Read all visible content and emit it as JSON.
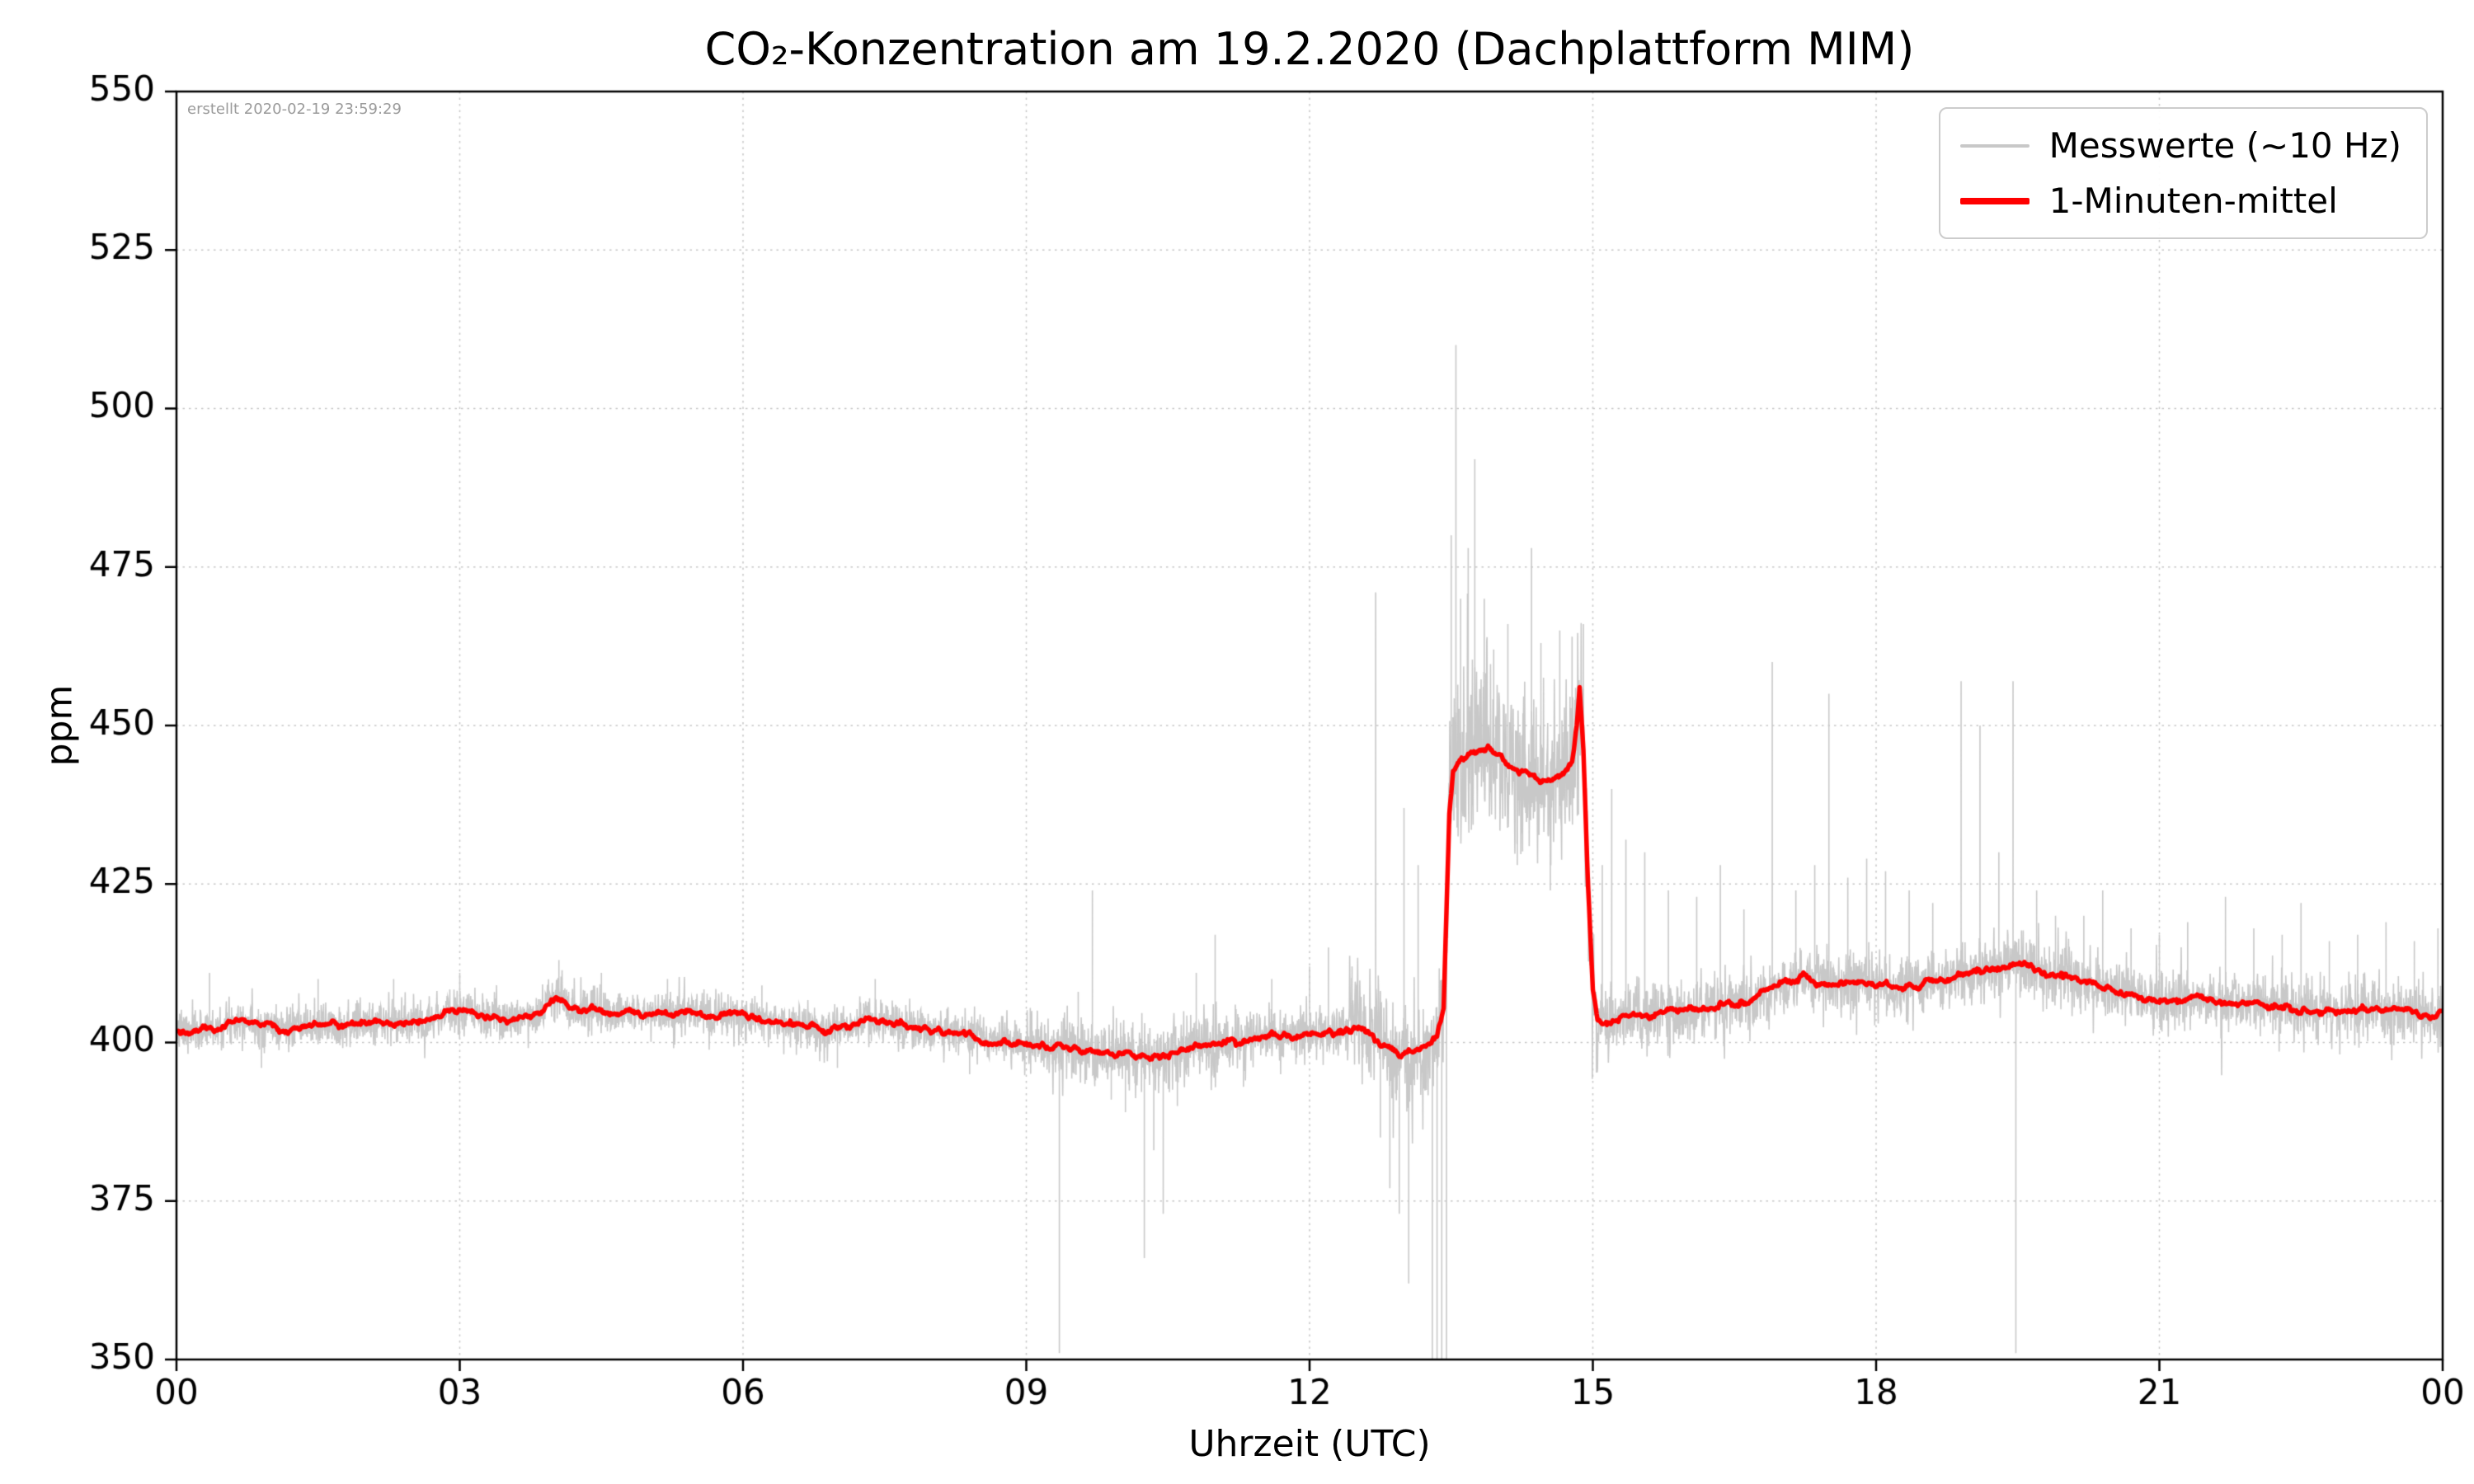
{
  "chart_data": {
    "type": "line",
    "title": "CO₂-Konzentration am 19.2.2020 (Dachplattform MIM)",
    "annotation": "erstellt 2020-02-19 23:59:29",
    "xlabel": "Uhrzeit (UTC)",
    "ylabel": "ppm",
    "xlim": [
      0,
      24
    ],
    "ylim": [
      350,
      550
    ],
    "grid": true,
    "x_ticks": [
      0,
      3,
      6,
      9,
      12,
      15,
      18,
      21,
      24
    ],
    "x_tick_labels": [
      "00",
      "03",
      "06",
      "09",
      "12",
      "15",
      "18",
      "21",
      "00"
    ],
    "y_ticks": [
      350,
      375,
      400,
      425,
      450,
      475,
      500,
      525,
      550
    ],
    "y_tick_labels": [
      "350",
      "375",
      "400",
      "425",
      "450",
      "475",
      "500",
      "525",
      "550"
    ],
    "colors": {
      "raw": "#c8c8c8",
      "mean": "#ff0000",
      "grid": "#c6c6c6",
      "spine": "#000000"
    },
    "legend": {
      "position": "upper right",
      "items": [
        {
          "label": "Messwerte (~10 Hz)",
          "color": "#c8c8c8"
        },
        {
          "label": "1-Minuten-mittel",
          "color": "#ff0000"
        }
      ]
    },
    "series": [
      {
        "name": "1-Minuten-mittel",
        "type": "mean_line",
        "color": "#ff0000",
        "points": [
          [
            0,
            402
          ],
          [
            0.15,
            401.6
          ],
          [
            0.3,
            402
          ],
          [
            0.45,
            402.4
          ],
          [
            0.6,
            403.4
          ],
          [
            0.7,
            404
          ],
          [
            0.8,
            403
          ],
          [
            1,
            402.6
          ],
          [
            1.2,
            402.1
          ],
          [
            1.4,
            402.5
          ],
          [
            1.6,
            403
          ],
          [
            1.8,
            402.6
          ],
          [
            2,
            403
          ],
          [
            2.2,
            403.4
          ],
          [
            2.4,
            403
          ],
          [
            2.6,
            403.5
          ],
          [
            2.8,
            404.4
          ],
          [
            3,
            405
          ],
          [
            3.1,
            404.5
          ],
          [
            3.25,
            403.6
          ],
          [
            3.4,
            404
          ],
          [
            3.55,
            403.6
          ],
          [
            3.7,
            404.4
          ],
          [
            3.85,
            405
          ],
          [
            3.95,
            406.4
          ],
          [
            4.05,
            407
          ],
          [
            4.15,
            405.6
          ],
          [
            4.3,
            405
          ],
          [
            4.45,
            405.4
          ],
          [
            4.6,
            404.6
          ],
          [
            4.75,
            405
          ],
          [
            4.9,
            404.6
          ],
          [
            5.1,
            405
          ],
          [
            5.3,
            404.6
          ],
          [
            5.5,
            404.6
          ],
          [
            5.7,
            404.1
          ],
          [
            5.9,
            404.5
          ],
          [
            6.1,
            404
          ],
          [
            6.3,
            403.6
          ],
          [
            6.5,
            403.1
          ],
          [
            6.7,
            402.6
          ],
          [
            6.9,
            402
          ],
          [
            7.1,
            402.5
          ],
          [
            7.3,
            403.5
          ],
          [
            7.5,
            403.4
          ],
          [
            7.7,
            402.6
          ],
          [
            7.9,
            402
          ],
          [
            8.1,
            401.6
          ],
          [
            8.3,
            401.5
          ],
          [
            8.5,
            400.6
          ],
          [
            8.7,
            400.5
          ],
          [
            8.9,
            400
          ],
          [
            9.1,
            399.6
          ],
          [
            9.3,
            399.5
          ],
          [
            9.5,
            399
          ],
          [
            9.7,
            398.6
          ],
          [
            9.9,
            398.5
          ],
          [
            10.1,
            398
          ],
          [
            10.3,
            397.6
          ],
          [
            10.5,
            398.4
          ],
          [
            10.7,
            399
          ],
          [
            10.9,
            400
          ],
          [
            11.1,
            400.4
          ],
          [
            11.3,
            400.5
          ],
          [
            11.5,
            401
          ],
          [
            11.7,
            401.4
          ],
          [
            11.9,
            401
          ],
          [
            12.1,
            401.5
          ],
          [
            12.3,
            402
          ],
          [
            12.5,
            402.4
          ],
          [
            12.65,
            401.4
          ],
          [
            12.8,
            399.4
          ],
          [
            12.95,
            398
          ],
          [
            13.1,
            398.5
          ],
          [
            13.25,
            399.6
          ],
          [
            13.35,
            401
          ],
          [
            13.42,
            406
          ],
          [
            13.48,
            436
          ],
          [
            13.52,
            443
          ],
          [
            13.6,
            444.5
          ],
          [
            13.7,
            445.5
          ],
          [
            13.8,
            446.5
          ],
          [
            13.9,
            446.5
          ],
          [
            14,
            445.5
          ],
          [
            14.1,
            444
          ],
          [
            14.2,
            443
          ],
          [
            14.3,
            442.6
          ],
          [
            14.4,
            441.6
          ],
          [
            14.5,
            441
          ],
          [
            14.6,
            441.2
          ],
          [
            14.7,
            442.4
          ],
          [
            14.78,
            443.6
          ],
          [
            14.83,
            450
          ],
          [
            14.86,
            456
          ],
          [
            14.9,
            446
          ],
          [
            14.95,
            424
          ],
          [
            15,
            408
          ],
          [
            15.05,
            403.4
          ],
          [
            15.15,
            403
          ],
          [
            15.3,
            404
          ],
          [
            15.45,
            404.5
          ],
          [
            15.6,
            404
          ],
          [
            15.75,
            405
          ],
          [
            15.9,
            405
          ],
          [
            16.05,
            405.4
          ],
          [
            16.2,
            405
          ],
          [
            16.35,
            406
          ],
          [
            16.5,
            406
          ],
          [
            16.65,
            406.5
          ],
          [
            16.8,
            408
          ],
          [
            16.95,
            409
          ],
          [
            17.1,
            409.4
          ],
          [
            17.25,
            410.5
          ],
          [
            17.4,
            409.5
          ],
          [
            17.55,
            409
          ],
          [
            17.7,
            409.4
          ],
          [
            17.85,
            410
          ],
          [
            18,
            409.5
          ],
          [
            18.15,
            408.6
          ],
          [
            18.3,
            408.5
          ],
          [
            18.45,
            409
          ],
          [
            18.6,
            410
          ],
          [
            18.75,
            410.4
          ],
          [
            18.9,
            410.5
          ],
          [
            19.05,
            411
          ],
          [
            19.2,
            411.4
          ],
          [
            19.35,
            412
          ],
          [
            19.5,
            413
          ],
          [
            19.65,
            412
          ],
          [
            19.8,
            411
          ],
          [
            19.95,
            410.5
          ],
          [
            20.1,
            410.4
          ],
          [
            20.25,
            409.5
          ],
          [
            20.4,
            408.6
          ],
          [
            20.55,
            408
          ],
          [
            20.7,
            407.5
          ],
          [
            20.85,
            407
          ],
          [
            21,
            407
          ],
          [
            21.2,
            406.6
          ],
          [
            21.4,
            407
          ],
          [
            21.6,
            406.5
          ],
          [
            21.8,
            406
          ],
          [
            22,
            406
          ],
          [
            22.2,
            405.6
          ],
          [
            22.4,
            405.5
          ],
          [
            22.6,
            405
          ],
          [
            22.8,
            405
          ],
          [
            23,
            405
          ],
          [
            23.2,
            405.4
          ],
          [
            23.4,
            405.5
          ],
          [
            23.6,
            405
          ],
          [
            23.8,
            404.6
          ],
          [
            24,
            404.5
          ]
        ]
      },
      {
        "name": "Messwerte (~10 Hz)",
        "type": "raw_noise_band",
        "color": "#c8c8c8",
        "noise_seed": 7,
        "samples": 6500,
        "noise_regions": [
          {
            "from": 0,
            "to": 9,
            "std": 1.7
          },
          {
            "from": 9,
            "to": 11.5,
            "std": 2.6
          },
          {
            "from": 11.5,
            "to": 12.4,
            "std": 2.0
          },
          {
            "from": 12.4,
            "to": 13.45,
            "std": 4.5
          },
          {
            "from": 13.45,
            "to": 15.05,
            "std": 6.5
          },
          {
            "from": 15.05,
            "to": 16.5,
            "std": 2.8
          },
          {
            "from": 16.5,
            "to": 24,
            "std": 2.5
          }
        ],
        "spikes": [
          [
            0.35,
            411
          ],
          [
            0.9,
            396
          ],
          [
            1.5,
            410
          ],
          [
            2.3,
            410
          ],
          [
            3,
            411
          ],
          [
            4.05,
            413
          ],
          [
            4.5,
            411
          ],
          [
            5.2,
            410
          ],
          [
            6.2,
            409
          ],
          [
            7,
            396
          ],
          [
            7.4,
            410
          ],
          [
            8.4,
            395
          ],
          [
            9.35,
            351
          ],
          [
            9.55,
            408
          ],
          [
            9.7,
            424
          ],
          [
            9.9,
            391
          ],
          [
            10.05,
            389
          ],
          [
            10.25,
            366
          ],
          [
            10.35,
            383
          ],
          [
            10.45,
            373
          ],
          [
            10.6,
            390
          ],
          [
            10.8,
            411
          ],
          [
            11,
            417
          ],
          [
            11.3,
            393
          ],
          [
            11.6,
            410
          ],
          [
            12,
            412
          ],
          [
            12.2,
            415
          ],
          [
            12.45,
            412
          ],
          [
            12.7,
            471
          ],
          [
            12.75,
            385
          ],
          [
            12.85,
            377
          ],
          [
            12.95,
            373
          ],
          [
            13,
            437
          ],
          [
            13.05,
            362
          ],
          [
            13.15,
            428
          ],
          [
            13.3,
            349
          ],
          [
            13.35,
            335
          ],
          [
            13.4,
            330
          ],
          [
            13.45,
            340
          ],
          [
            13.5,
            480
          ],
          [
            13.55,
            510
          ],
          [
            13.6,
            470
          ],
          [
            13.68,
            478
          ],
          [
            13.75,
            492
          ],
          [
            13.85,
            470
          ],
          [
            13.95,
            462
          ],
          [
            14.1,
            466
          ],
          [
            14.2,
            428
          ],
          [
            14.35,
            478
          ],
          [
            14.45,
            463
          ],
          [
            14.55,
            424
          ],
          [
            14.65,
            465
          ],
          [
            14.78,
            464
          ],
          [
            14.9,
            466
          ],
          [
            15.1,
            428
          ],
          [
            15.2,
            440
          ],
          [
            15.35,
            432
          ],
          [
            15.55,
            430
          ],
          [
            15.8,
            424
          ],
          [
            16.1,
            423
          ],
          [
            16.35,
            428
          ],
          [
            16.6,
            421
          ],
          [
            16.9,
            460
          ],
          [
            17.15,
            424
          ],
          [
            17.35,
            428
          ],
          [
            17.5,
            455
          ],
          [
            17.7,
            426
          ],
          [
            17.9,
            429
          ],
          [
            18.1,
            427
          ],
          [
            18.35,
            424
          ],
          [
            18.6,
            422
          ],
          [
            18.9,
            457
          ],
          [
            19.1,
            450
          ],
          [
            19.3,
            430
          ],
          [
            19.45,
            457
          ],
          [
            19.48,
            351
          ],
          [
            19.7,
            424
          ],
          [
            19.9,
            420
          ],
          [
            20.2,
            420
          ],
          [
            20.4,
            424
          ],
          [
            20.7,
            418
          ],
          [
            21,
            417
          ],
          [
            21.3,
            419
          ],
          [
            21.7,
            423
          ],
          [
            22,
            418
          ],
          [
            22.3,
            417
          ],
          [
            22.5,
            422
          ],
          [
            22.8,
            416
          ],
          [
            23.1,
            417
          ],
          [
            23.4,
            419
          ],
          [
            23.7,
            416
          ],
          [
            23.95,
            418
          ]
        ]
      }
    ]
  }
}
